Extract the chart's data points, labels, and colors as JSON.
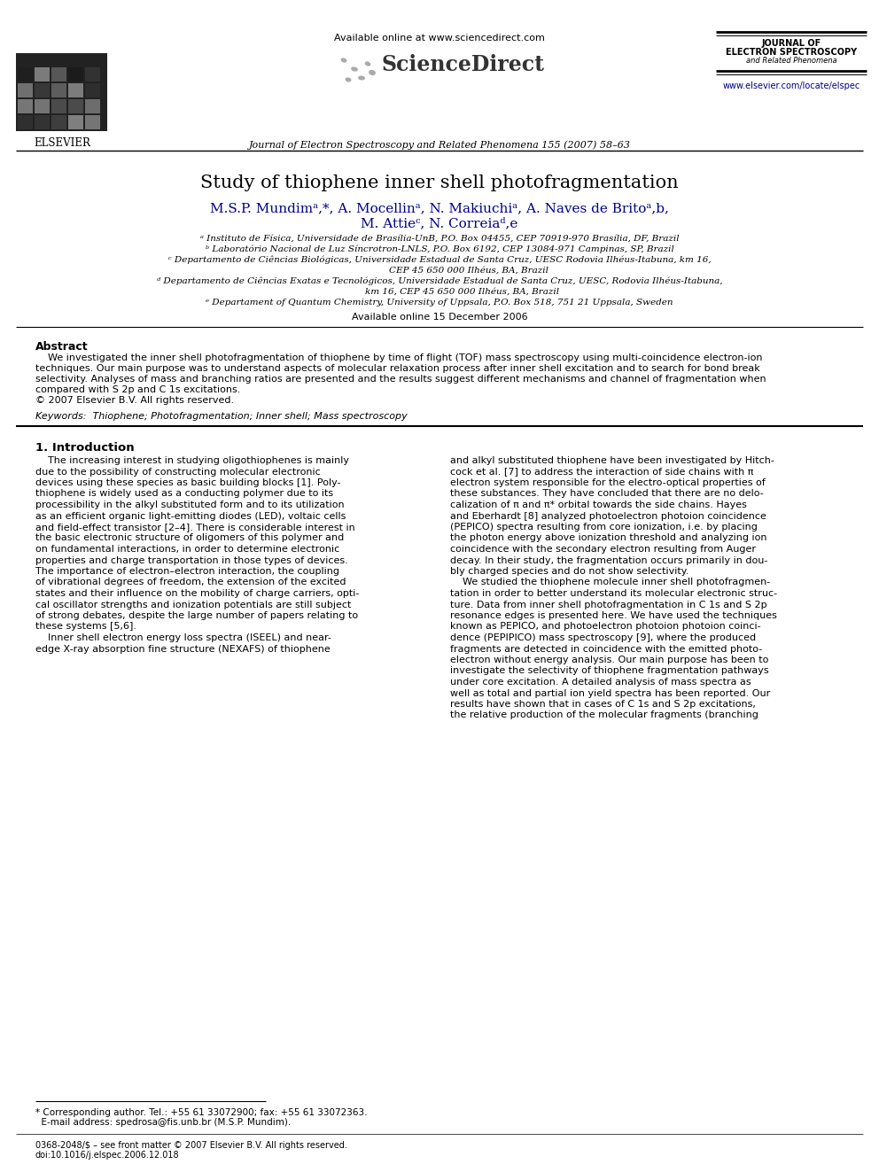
{
  "title": "Study of thiophene inner shell photofragmentation",
  "author_line1": "M.S.P. Mundimᵃ,*, A. Mocellinᵃ, N. Makiuchiᵃ, A. Naves de Britoᵃ,b,",
  "author_line2": "M. Attieᶜ, N. Correiaᵈ,e",
  "aff_a": "ᵃ Instituto de Física, Universidade de Brasília-UnB, P.O. Box 04455, CEP 70919-970 Brasília, DF, Brazil",
  "aff_b": "ᵇ Laboratório Nacional de Luz Síncrotron-LNLS, P.O. Box 6192, CEP 13084-971 Campinas, SP, Brazil",
  "aff_c1": "ᶜ Departamento de Ciências Biológicas, Universidade Estadual de Santa Cruz, UESC Rodovia Ilhéus-Itabuna, km 16,",
  "aff_c2": "CEP 45 650 000 Ilhéus, BA, Brazil",
  "aff_d1": "ᵈ Departamento de Ciências Exatas e Tecnológicos, Universidade Estadual de Santa Cruz, UESC, Rodovia Ilhéus-Itabuna,",
  "aff_d2": "km 16, CEP 45 650 000 Ilhéus, BA, Brazil",
  "aff_e": "ᵉ Departament of Quantum Chemistry, University of Uppsala, P.O. Box 518, 751 21 Uppsala, Sweden",
  "available_online_header": "Available online 15 December 2006",
  "journal_header": "Journal of Electron Spectroscopy and Related Phenomena 155 (2007) 58–63",
  "available_online_top": "Available online at www.sciencedirect.com",
  "sciencedirect": "ScienceDirect",
  "journal_of": "JOURNAL OF",
  "electron_spectroscopy": "ELECTRON SPECTROSCOPY",
  "and_related": "and Related Phenomena",
  "website": "www.elsevier.com/locate/elspec",
  "elsevier": "ELSEVIER",
  "abstract_title": "Abstract",
  "abstract_lines": [
    "    We investigated the inner shell photofragmentation of thiophene by time of flight (TOF) mass spectroscopy using multi-coincidence electron-ion",
    "techniques. Our main purpose was to understand aspects of molecular relaxation process after inner shell excitation and to search for bond break",
    "selectivity. Analyses of mass and branching ratios are presented and the results suggest different mechanisms and channel of fragmentation when",
    "compared with S 2p and C 1s excitations.",
    "© 2007 Elsevier B.V. All rights reserved."
  ],
  "keywords": "Keywords:  Thiophene; Photofragmentation; Inner shell; Mass spectroscopy",
  "section1_title": "1. Introduction",
  "col1_lines": [
    "    The increasing interest in studying oligothiophenes is mainly",
    "due to the possibility of constructing molecular electronic",
    "devices using these species as basic building blocks [1]. Poly-",
    "thiophene is widely used as a conducting polymer due to its",
    "processibility in the alkyl substituted form and to its utilization",
    "as an efficient organic light-emitting diodes (LED), voltaic cells",
    "and field-effect transistor [2–4]. There is considerable interest in",
    "the basic electronic structure of oligomers of this polymer and",
    "on fundamental interactions, in order to determine electronic",
    "properties and charge transportation in those types of devices.",
    "The importance of electron–electron interaction, the coupling",
    "of vibrational degrees of freedom, the extension of the excited",
    "states and their influence on the mobility of charge carriers, opti-",
    "cal oscillator strengths and ionization potentials are still subject",
    "of strong debates, despite the large number of papers relating to",
    "these systems [5,6].",
    "    Inner shell electron energy loss spectra (ISEEL) and near-",
    "edge X-ray absorption fine structure (NEXAFS) of thiophene"
  ],
  "col2_lines": [
    "and alkyl substituted thiophene have been investigated by Hitch-",
    "cock et al. [7] to address the interaction of side chains with π",
    "electron system responsible for the electro-optical properties of",
    "these substances. They have concluded that there are no delo-",
    "calization of π and π* orbital towards the side chains. Hayes",
    "and Eberhardt [8] analyzed photoelectron photoion coincidence",
    "(PEPICO) spectra resulting from core ionization, i.e. by placing",
    "the photon energy above ionization threshold and analyzing ion",
    "coincidence with the secondary electron resulting from Auger",
    "decay. In their study, the fragmentation occurs primarily in dou-",
    "bly charged species and do not show selectivity.",
    "    We studied the thiophene molecule inner shell photofragmen-",
    "tation in order to better understand its molecular electronic struc-",
    "ture. Data from inner shell photofragmentation in C 1s and S 2p",
    "resonance edges is presented here. We have used the techniques",
    "known as PEPICO, and photoelectron photoion photoion coinci-",
    "dence (PEPIPICO) mass spectroscopy [9], where the produced",
    "fragments are detected in coincidence with the emitted photo-",
    "electron without energy analysis. Our main purpose has been to",
    "investigate the selectivity of thiophene fragmentation pathways",
    "under core excitation. A detailed analysis of mass spectra as",
    "well as total and partial ion yield spectra has been reported. Our",
    "results have shown that in cases of C 1s and S 2p excitations,",
    "the relative production of the molecular fragments (branching"
  ],
  "footnote1": "* Corresponding author. Tel.: +55 61 33072900; fax: +55 61 33072363.",
  "footnote2": "  E-mail address: spedrosa@fis.unb.br (M.S.P. Mundim).",
  "footnote3": "0368-2048/$ – see front matter © 2007 Elsevier B.V. All rights reserved.",
  "footnote4": "doi:10.1016/j.elspec.2006.12.018",
  "bg": "#ffffff",
  "black": "#000000",
  "author_color": "#00008B",
  "link_color": "#00008B",
  "gray": "#888888",
  "dot_color": "#aaaaaa"
}
